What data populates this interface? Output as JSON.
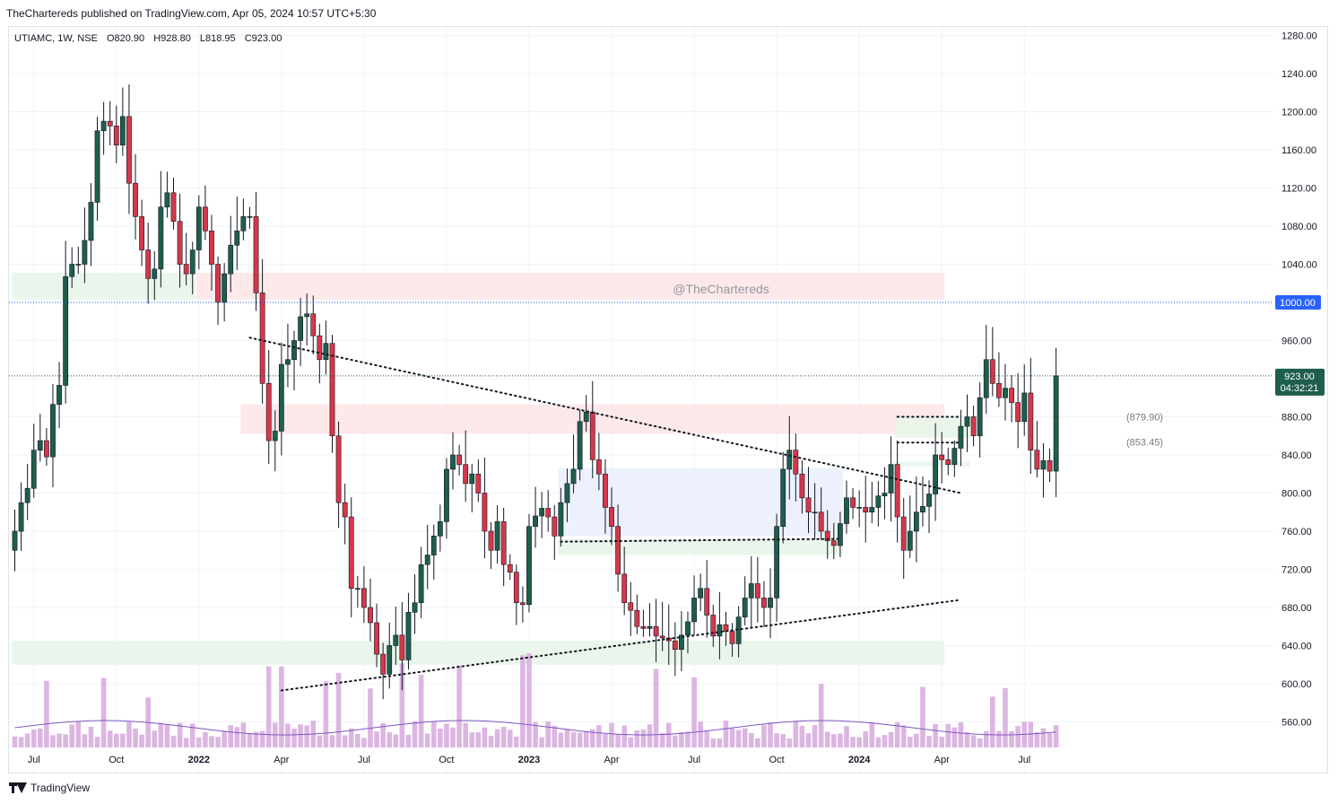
{
  "header": {
    "text": "TheChartereds published on TradingView.com, Apr 05, 2024 10:57 UTC+5:30"
  },
  "footer": {
    "brand": "TradingView",
    "logo_icon": "tradingview-logo-icon"
  },
  "colors": {
    "up": "#1e5e4d",
    "down": "#d6374a",
    "volume": "#dcb6e2",
    "volume_ma": "#7e57c2",
    "red_zone": "#fde7e8",
    "green_zone": "#e8f5e9",
    "blue_zone": "#eaf0fd",
    "axis_text": "#131722",
    "price_badge": "#1e5e4d",
    "level_badge": "#2962ff"
  },
  "chart_data": {
    "type": "candlestick",
    "symbol_legend": "UTIAMC, 1W, NSE",
    "ohlc_legend": {
      "open": "O820.90",
      "high": "H928.80",
      "low": "L818.95",
      "close": "C923.00"
    },
    "watermark": "@TheChartereds",
    "ylim": [
      538,
      1290
    ],
    "y_ticks": [
      "1280.00",
      "1240.00",
      "1200.00",
      "1160.00",
      "1120.00",
      "1080.00",
      "1040.00",
      "1000.00",
      "960.00",
      "920.00",
      "880.00",
      "840.00",
      "800.00",
      "760.00",
      "720.00",
      "680.00",
      "640.00",
      "600.00",
      "560.00"
    ],
    "y_tick_values": [
      1280,
      1240,
      1200,
      1160,
      1120,
      1080,
      1040,
      1000,
      960,
      920,
      880,
      840,
      800,
      760,
      720,
      680,
      640,
      600,
      560
    ],
    "x_ticks": [
      {
        "label": "Jul",
        "week": 3
      },
      {
        "label": "Oct",
        "week": 16
      },
      {
        "label": "2022",
        "week": 29,
        "bold": true
      },
      {
        "label": "Apr",
        "week": 42
      },
      {
        "label": "Jul",
        "week": 55
      },
      {
        "label": "Oct",
        "week": 68
      },
      {
        "label": "2023",
        "week": 81,
        "bold": true
      },
      {
        "label": "Apr",
        "week": 94
      },
      {
        "label": "Jul",
        "week": 107
      },
      {
        "label": "Oct",
        "week": 120
      },
      {
        "label": "2024",
        "week": 133,
        "bold": true
      },
      {
        "label": "Apr",
        "week": 146
      },
      {
        "label": "Jul",
        "week": 159
      }
    ],
    "last_price": {
      "value": 923.0,
      "label": "923.00",
      "countdown": "04:32:21"
    },
    "marked_level": {
      "value": 1000.0,
      "label": "1000.00"
    },
    "level_labels": [
      {
        "value": 879.9,
        "label": "(879.90)"
      },
      {
        "value": 853.45,
        "label": "(853.45)"
      }
    ],
    "closes": [
      760,
      790,
      805,
      845,
      855,
      838,
      893,
      913,
      1027,
      1040,
      1040,
      1065,
      1105,
      1180,
      1190,
      1185,
      1165,
      1195,
      1125,
      1090,
      1055,
      1025,
      1035,
      1100,
      1115,
      1085,
      1040,
      1030,
      1055,
      1100,
      1075,
      1040,
      1000,
      1030,
      1060,
      1075,
      1090,
      1090,
      1010,
      915,
      855,
      865,
      935,
      940,
      960,
      985,
      988,
      965,
      940,
      957,
      860,
      790,
      775,
      700,
      700,
      680,
      664,
      631,
      610,
      640,
      651,
      625,
      675,
      685,
      725,
      735,
      755,
      770,
      825,
      840,
      830,
      810,
      820,
      800,
      760,
      740,
      770,
      725,
      717,
      685,
      683,
      765,
      776,
      784,
      775,
      755,
      790,
      810,
      825,
      875,
      885,
      835,
      820,
      785,
      765,
      715,
      685,
      677,
      660,
      658,
      660,
      650,
      648,
      645,
      636,
      651,
      665,
      690,
      700,
      672,
      650,
      662,
      655,
      642,
      670,
      690,
      705,
      690,
      680,
      690,
      765,
      825,
      845,
      820,
      795,
      780,
      780,
      760,
      750,
      745,
      768,
      795,
      785,
      785,
      780,
      785,
      797,
      800,
      830,
      775,
      740,
      760,
      780,
      786,
      799,
      840,
      835,
      830,
      847,
      870,
      880,
      860,
      900,
      940,
      915,
      900,
      910,
      895,
      875,
      905,
      845,
      825,
      834,
      823,
      923
    ],
    "opens": null,
    "series": [
      {
        "name": "Volume",
        "type": "bar"
      },
      {
        "name": "Volume MA",
        "type": "line"
      }
    ],
    "zones": [
      {
        "kind": "red",
        "from_week": 0,
        "to_week": 28,
        "y_low": 1003,
        "y_high": 1031,
        "color_key": "green_zone"
      },
      {
        "kind": "red",
        "from_week": 29,
        "to_week": 146,
        "y_low": 1003,
        "y_high": 1031
      },
      {
        "kind": "red",
        "from_week": 36,
        "to_week": 146,
        "y_low": 862,
        "y_high": 893
      },
      {
        "kind": "blue",
        "from_week": 86,
        "to_week": 130,
        "y_low": 755,
        "y_high": 826
      },
      {
        "kind": "green",
        "from_week": 86,
        "to_week": 130,
        "y_low": 735,
        "y_high": 752
      },
      {
        "kind": "green",
        "from_week": 0,
        "to_week": 146,
        "y_low": 620,
        "y_high": 645
      },
      {
        "kind": "green",
        "from_week": 139,
        "to_week": 150,
        "y_low": 828,
        "y_high": 833
      },
      {
        "kind": "green",
        "from_week": 139,
        "to_week": 150,
        "y_low": 858,
        "y_high": 880
      }
    ],
    "trendlines": [
      {
        "style": "dotted",
        "from": [
          37,
          963
        ],
        "to": [
          149,
          800
        ]
      },
      {
        "style": "dotted",
        "from": [
          42,
          593
        ],
        "to": [
          149,
          688
        ]
      },
      {
        "style": "dotted",
        "from": [
          86,
          749
        ],
        "to": [
          130,
          752
        ]
      },
      {
        "style": "dotted",
        "from": [
          139,
          880
        ],
        "to": [
          149,
          880
        ]
      },
      {
        "style": "dotted",
        "from": [
          139,
          853
        ],
        "to": [
          149,
          853
        ]
      }
    ],
    "grid": true,
    "legend_position": "top-left"
  }
}
